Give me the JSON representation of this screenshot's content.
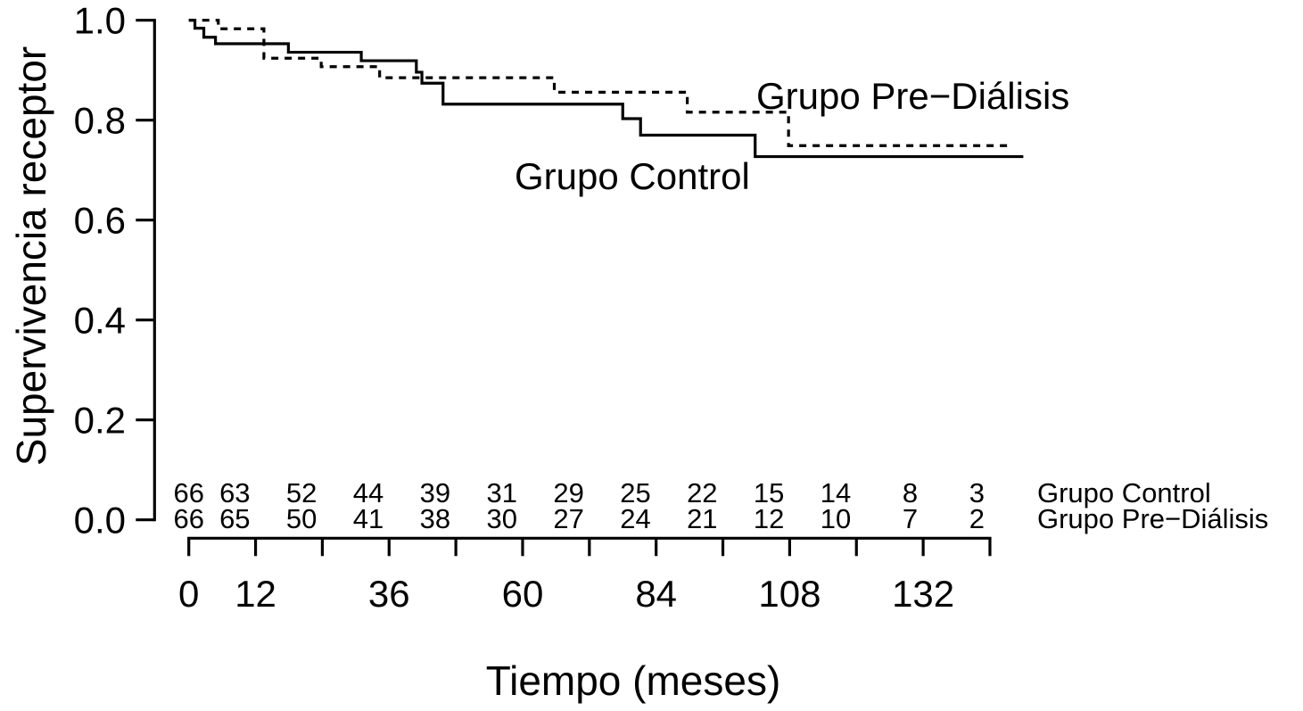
{
  "chart_data": {
    "type": "line",
    "subtype": "kaplan-meier-step",
    "title": "",
    "xlabel": "Tiempo (meses)",
    "ylabel": "Supervivencia receptor",
    "xlim": [
      0,
      150
    ],
    "ylim": [
      0.0,
      1.0
    ],
    "grid": false,
    "legend_position": "inline-curve-labels",
    "line_color": "#000000",
    "y_ticks": [
      {
        "value": 1.0,
        "label": "1.0"
      },
      {
        "value": 0.8,
        "label": "0.8"
      },
      {
        "value": 0.6,
        "label": "0.6"
      },
      {
        "value": 0.4,
        "label": "0.4"
      },
      {
        "value": 0.2,
        "label": "0.2"
      },
      {
        "value": 0.0,
        "label": "0.0"
      }
    ],
    "x_tick_months": [
      0,
      12,
      24,
      36,
      48,
      60,
      72,
      84,
      96,
      108,
      120,
      132,
      144
    ],
    "x_tick_labels": [
      {
        "month": 0,
        "label": "0"
      },
      {
        "month": 12,
        "label": "12"
      },
      {
        "month": 36,
        "label": "36"
      },
      {
        "month": 60,
        "label": "60"
      },
      {
        "month": 84,
        "label": "84"
      },
      {
        "month": 108,
        "label": "108"
      },
      {
        "month": 132,
        "label": "132"
      }
    ],
    "series": [
      {
        "name": "Grupo Control",
        "line_style": "solid",
        "color": "#000000",
        "end_month": 150,
        "steps": [
          [
            0,
            1.0
          ],
          [
            1.1,
            0.984
          ],
          [
            2.7,
            0.966
          ],
          [
            4.8,
            0.953
          ],
          [
            17.9,
            0.936
          ],
          [
            31.0,
            0.919
          ],
          [
            40.9,
            0.896
          ],
          [
            41.9,
            0.874
          ],
          [
            45.7,
            0.832
          ],
          [
            78.0,
            0.803
          ],
          [
            81.2,
            0.77
          ],
          [
            101.8,
            0.727
          ]
        ]
      },
      {
        "name": "Grupo Pre−Diálisis",
        "line_style": "dashed",
        "color": "#000000",
        "end_month": 148,
        "steps": [
          [
            0,
            1.0
          ],
          [
            5.3,
            0.983
          ],
          [
            13.5,
            0.924
          ],
          [
            23.8,
            0.907
          ],
          [
            34.3,
            0.885
          ],
          [
            65.7,
            0.856
          ],
          [
            89.6,
            0.816
          ],
          [
            107.8,
            0.749
          ]
        ]
      }
    ],
    "numbers_at_risk": {
      "times": [
        0,
        12,
        24,
        36,
        48,
        60,
        72,
        84,
        96,
        108,
        120,
        132,
        144
      ],
      "rows": [
        {
          "label": "Grupo Control",
          "values": [
            66,
            63,
            52,
            44,
            39,
            31,
            29,
            25,
            22,
            15,
            14,
            8,
            3
          ]
        },
        {
          "label": "Grupo Pre−Diálisis",
          "values": [
            66,
            65,
            50,
            41,
            38,
            30,
            27,
            24,
            21,
            12,
            10,
            7,
            2
          ]
        }
      ]
    }
  }
}
